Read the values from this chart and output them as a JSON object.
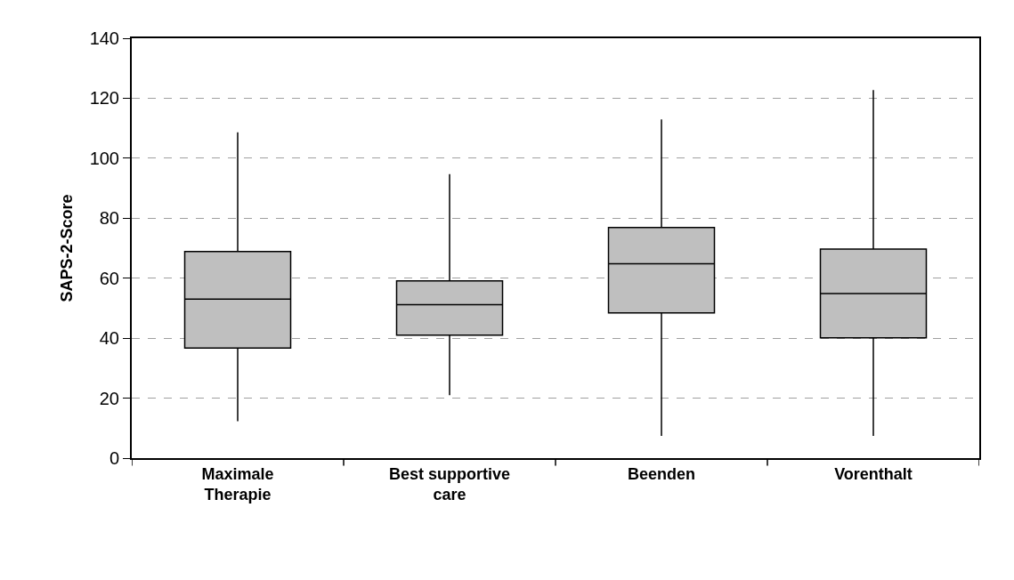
{
  "chart_data": {
    "type": "box",
    "ylabel": "SAPS-2-Score",
    "categories": [
      "Maximale\nTherapie",
      "Best supportive\ncare",
      "Beenden",
      "Vorenthalt"
    ],
    "boxes": [
      {
        "low": 12.3,
        "q1": 36.7,
        "median": 53,
        "q3": 68.9,
        "high": 108.6
      },
      {
        "low": 21,
        "q1": 41,
        "median": 51.2,
        "q3": 59.1,
        "high": 94.7
      },
      {
        "low": 7.4,
        "q1": 48.4,
        "median": 64.8,
        "q3": 76.9,
        "high": 112.9
      },
      {
        "low": 7.4,
        "q1": 40.1,
        "median": 54.9,
        "q3": 69.7,
        "high": 122.7
      }
    ],
    "color": "#bfbfbf",
    "ylim": [
      0,
      140
    ],
    "yticks": [
      0,
      20,
      40,
      60,
      80,
      100,
      120,
      140
    ],
    "grid": "y"
  }
}
